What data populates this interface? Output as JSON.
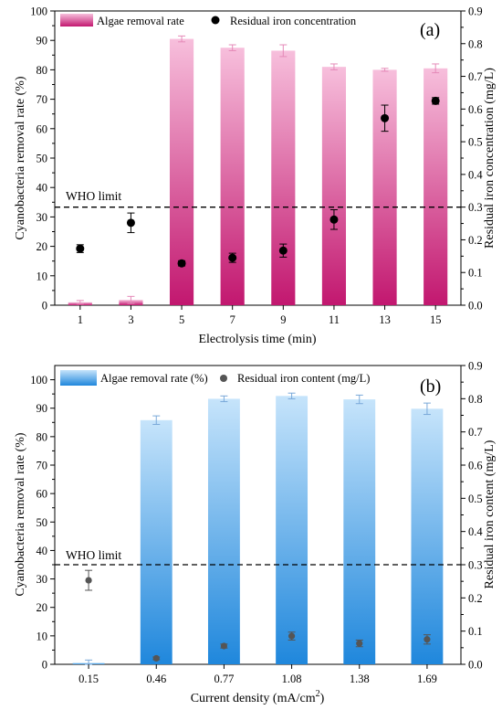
{
  "chart_data": [
    {
      "type": "bar",
      "panel_label": "(a)",
      "xlabel": "Electrolysis time (min)",
      "ylabel": "Cyanobacteria removal rate (%)",
      "y2label": "Residual iron concentration (mg/L)",
      "categories": [
        "1",
        "3",
        "5",
        "7",
        "9",
        "11",
        "13",
        "15"
      ],
      "ylim": [
        0,
        100
      ],
      "y2lim": [
        0,
        0.9
      ],
      "yticks": [
        "0",
        "10",
        "20",
        "30",
        "40",
        "50",
        "60",
        "70",
        "80",
        "90",
        "100"
      ],
      "y2ticks": [
        "0.0",
        "0.1",
        "0.2",
        "0.3",
        "0.4",
        "0.5",
        "0.6",
        "0.7",
        "0.8",
        "0.9"
      ],
      "legend_position": "top-left",
      "series": [
        {
          "name": "Algae removal rate",
          "axis": "left",
          "mark": "bar",
          "values": [
            1.0,
            1.8,
            90.5,
            87.5,
            86.5,
            81.0,
            80.0,
            80.5
          ],
          "errors": [
            0.6,
            1.2,
            1.0,
            1.0,
            2.0,
            1.0,
            0.5,
            1.5
          ],
          "color_top": "#f7bfdc",
          "color_bottom": "#c2176f",
          "error_color": "#e58ab8"
        },
        {
          "name": "Residual iron concentration",
          "axis": "right",
          "mark": "point",
          "values": [
            0.173,
            0.252,
            0.128,
            0.145,
            0.167,
            0.262,
            0.572,
            0.625
          ],
          "errors": [
            0.012,
            0.03,
            0.008,
            0.014,
            0.02,
            0.03,
            0.04,
            0.01
          ],
          "color": "#000000"
        }
      ],
      "reference_line": {
        "label": "WHO limit",
        "axis": "right",
        "value": 0.3
      }
    },
    {
      "type": "bar",
      "panel_label": "(b)",
      "xlabel_main": "Current density (mA/cm",
      "xlabel_sup": "2",
      "xlabel_end": ")",
      "ylabel": "Cyanobacteria removal rate (%)",
      "y2label": "Residual iron content (mg/L)",
      "categories": [
        "0.15",
        "0.46",
        "0.77",
        "1.08",
        "1.38",
        "1.69"
      ],
      "ylim": [
        0,
        105
      ],
      "y2lim": [
        0,
        0.9
      ],
      "yticks": [
        "0",
        "10",
        "20",
        "30",
        "40",
        "50",
        "60",
        "70",
        "80",
        "90",
        "100"
      ],
      "y2ticks": [
        "0.0",
        "0.1",
        "0.2",
        "0.3",
        "0.4",
        "0.5",
        "0.6",
        "0.7",
        "0.8",
        "0.9"
      ],
      "legend_position": "top-left",
      "series": [
        {
          "name": "Algae removal rate (%)",
          "axis": "left",
          "mark": "bar",
          "values": [
            0.5,
            85.8,
            93.3,
            94.3,
            93.1,
            89.8
          ],
          "errors": [
            1.0,
            1.5,
            1.0,
            1.0,
            1.5,
            2.0
          ],
          "color_top": "#c6e4fb",
          "color_bottom": "#1f87dc",
          "error_color": "#7aa9d9"
        },
        {
          "name": "Residual iron content (mg/L)",
          "axis": "right",
          "mark": "point",
          "values": [
            0.253,
            0.018,
            0.055,
            0.085,
            0.063,
            0.075
          ],
          "errors": [
            0.03,
            0.004,
            0.006,
            0.012,
            0.01,
            0.014
          ],
          "color": "#555555"
        }
      ],
      "reference_line": {
        "label": "WHO limit",
        "axis": "right",
        "value": 0.3
      }
    }
  ]
}
